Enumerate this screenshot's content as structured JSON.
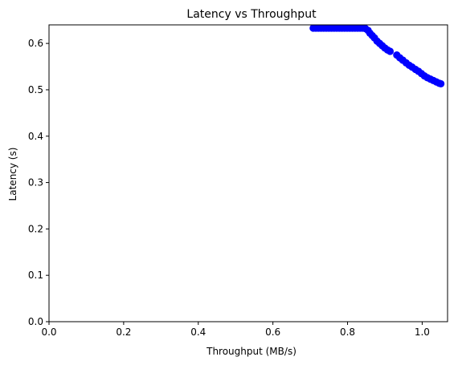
{
  "chart_data": {
    "type": "scatter",
    "title": "Latency vs Throughput",
    "xlabel": "Throughput (MB/s)",
    "ylabel": "Latency (s)",
    "xlim": [
      0.0,
      1.068
    ],
    "ylim": [
      0.0,
      0.64
    ],
    "xticks": [
      0.0,
      0.2,
      0.4,
      0.6,
      0.8,
      1.0
    ],
    "xtick_labels": [
      "0.0",
      "0.2",
      "0.4",
      "0.6",
      "0.8",
      "1.0"
    ],
    "yticks": [
      0.0,
      0.1,
      0.2,
      0.3,
      0.4,
      0.5,
      0.6
    ],
    "ytick_labels": [
      "0.0",
      "0.1",
      "0.2",
      "0.3",
      "0.4",
      "0.5",
      "0.6"
    ],
    "grid": false,
    "marker_color": "#0000ff",
    "points": [
      {
        "x": 0.708,
        "y": 0.633
      },
      {
        "x": 0.715,
        "y": 0.633
      },
      {
        "x": 0.722,
        "y": 0.633
      },
      {
        "x": 0.729,
        "y": 0.633
      },
      {
        "x": 0.736,
        "y": 0.633
      },
      {
        "x": 0.743,
        "y": 0.633
      },
      {
        "x": 0.75,
        "y": 0.633
      },
      {
        "x": 0.757,
        "y": 0.633
      },
      {
        "x": 0.764,
        "y": 0.633
      },
      {
        "x": 0.771,
        "y": 0.633
      },
      {
        "x": 0.778,
        "y": 0.633
      },
      {
        "x": 0.785,
        "y": 0.633
      },
      {
        "x": 0.792,
        "y": 0.633
      },
      {
        "x": 0.799,
        "y": 0.633
      },
      {
        "x": 0.806,
        "y": 0.633
      },
      {
        "x": 0.813,
        "y": 0.633
      },
      {
        "x": 0.82,
        "y": 0.633
      },
      {
        "x": 0.827,
        "y": 0.633
      },
      {
        "x": 0.834,
        "y": 0.633
      },
      {
        "x": 0.841,
        "y": 0.633
      },
      {
        "x": 0.848,
        "y": 0.632
      },
      {
        "x": 0.855,
        "y": 0.628
      },
      {
        "x": 0.86,
        "y": 0.622
      },
      {
        "x": 0.866,
        "y": 0.617
      },
      {
        "x": 0.872,
        "y": 0.612
      },
      {
        "x": 0.879,
        "y": 0.605
      },
      {
        "x": 0.886,
        "y": 0.6
      },
      {
        "x": 0.893,
        "y": 0.595
      },
      {
        "x": 0.9,
        "y": 0.59
      },
      {
        "x": 0.907,
        "y": 0.586
      },
      {
        "x": 0.914,
        "y": 0.583
      },
      {
        "x": 0.932,
        "y": 0.575
      },
      {
        "x": 0.94,
        "y": 0.569
      },
      {
        "x": 0.948,
        "y": 0.564
      },
      {
        "x": 0.957,
        "y": 0.558
      },
      {
        "x": 0.965,
        "y": 0.553
      },
      {
        "x": 0.973,
        "y": 0.549
      },
      {
        "x": 0.982,
        "y": 0.544
      },
      {
        "x": 0.99,
        "y": 0.54
      },
      {
        "x": 0.998,
        "y": 0.535
      },
      {
        "x": 1.006,
        "y": 0.53
      },
      {
        "x": 1.014,
        "y": 0.526
      },
      {
        "x": 1.022,
        "y": 0.523
      },
      {
        "x": 1.03,
        "y": 0.52
      },
      {
        "x": 1.038,
        "y": 0.517
      },
      {
        "x": 1.046,
        "y": 0.514
      },
      {
        "x": 1.05,
        "y": 0.513
      }
    ]
  }
}
